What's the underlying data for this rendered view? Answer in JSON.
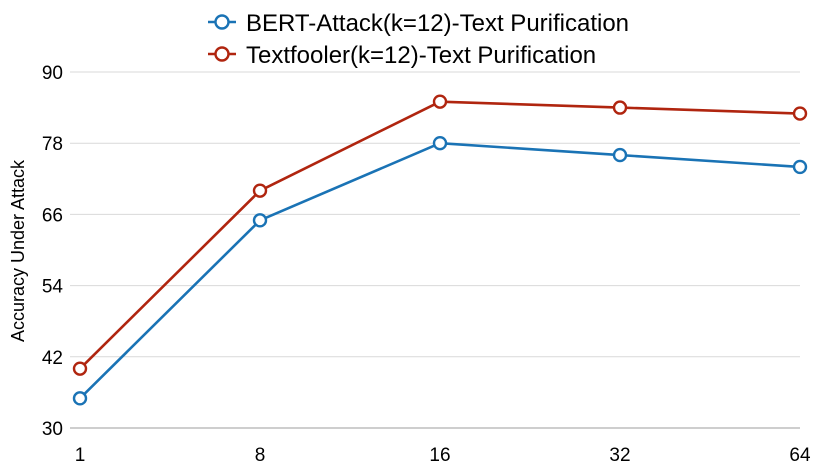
{
  "chart_data": {
    "type": "line",
    "title": "",
    "xlabel": "",
    "ylabel": "Accuracy Under Attack",
    "categories": [
      "1",
      "8",
      "16",
      "32",
      "64"
    ],
    "ylim": [
      30,
      90
    ],
    "yticks": [
      "30",
      "42",
      "54",
      "66",
      "78",
      "90"
    ],
    "grid": true,
    "legend_position": "top-center",
    "series": [
      {
        "name": "BERT-Attack(k=12)-Text Purification",
        "color": "#1a73b5",
        "values": [
          35,
          65,
          78,
          76,
          74
        ]
      },
      {
        "name": "Textfooler(k=12)-Text Purification",
        "color": "#b0250f",
        "values": [
          40,
          70,
          85,
          84,
          83
        ]
      }
    ]
  }
}
